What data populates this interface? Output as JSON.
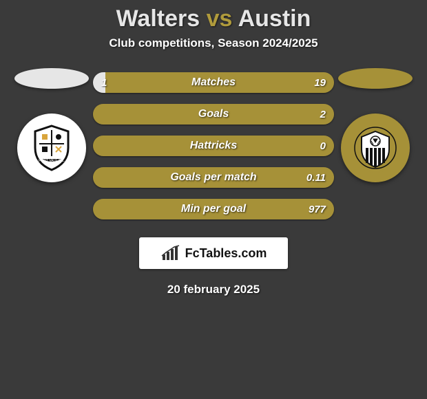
{
  "title": {
    "left": "Walters",
    "vs": "vs",
    "right": "Austin"
  },
  "title_colors": {
    "left": "#e6e6e6",
    "vs": "#b09b3c",
    "right": "#e6e6e6"
  },
  "subtitle": "Club competitions, Season 2024/2025",
  "date": "20 february 2025",
  "logo_text": "FcTables.com",
  "background_color": "#3a3a3a",
  "player_colors": {
    "left": "#e6e6e6",
    "right": "#a69138"
  },
  "bars": {
    "border_radius": 15,
    "height": 30,
    "label_fontsize": 16,
    "value_fontsize": 15,
    "rows": [
      {
        "label": "Matches",
        "left_val": "1",
        "right_val": "19",
        "left_pct": 5,
        "right_pct": 95
      },
      {
        "label": "Goals",
        "left_val": "",
        "right_val": "2",
        "left_pct": 0,
        "right_pct": 100
      },
      {
        "label": "Hattricks",
        "left_val": "",
        "right_val": "0",
        "left_pct": 0,
        "right_pct": 100
      },
      {
        "label": "Goals per match",
        "left_val": "",
        "right_val": "0.11",
        "left_pct": 0,
        "right_pct": 100
      },
      {
        "label": "Min per goal",
        "left_val": "",
        "right_val": "977",
        "left_pct": 0,
        "right_pct": 100
      }
    ]
  }
}
